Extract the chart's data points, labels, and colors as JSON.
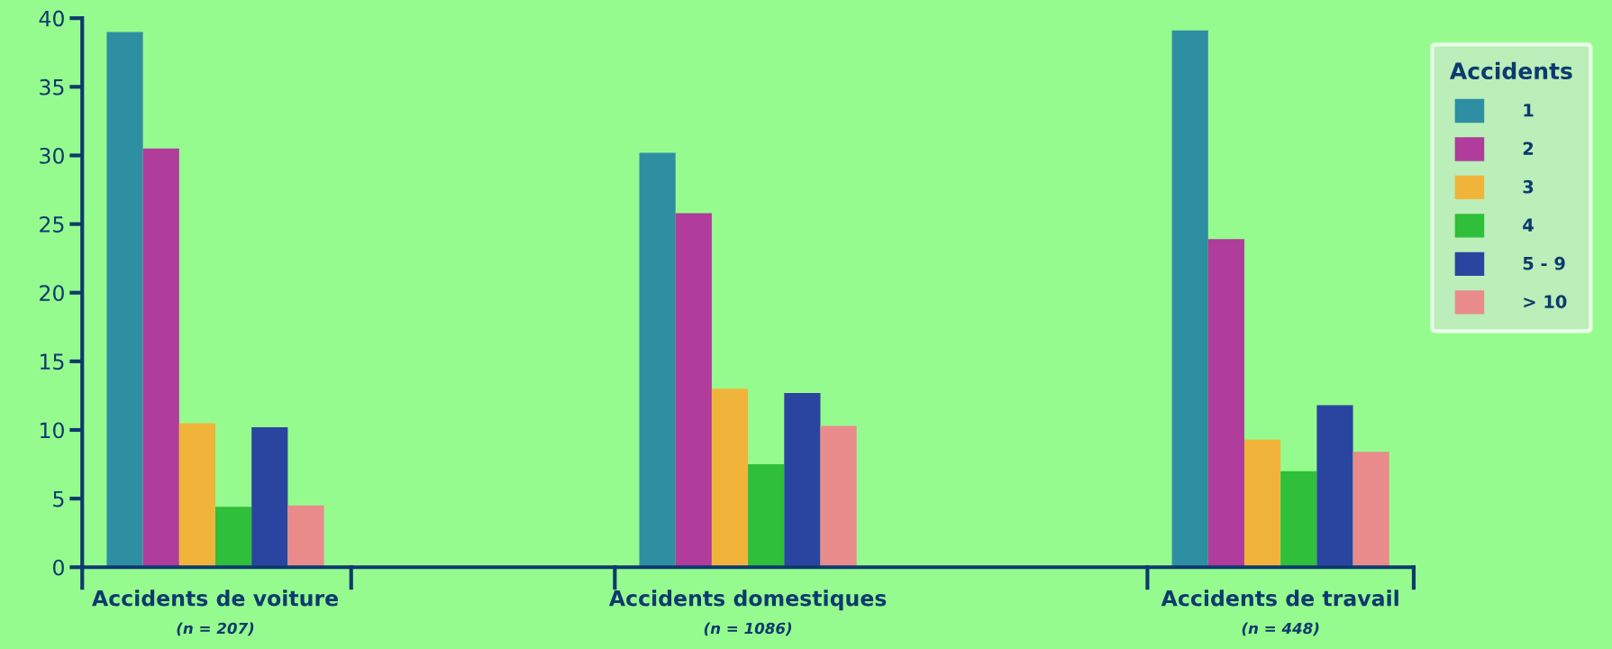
{
  "chart_data": {
    "type": "bar",
    "categories": [
      "Accidents de voiture",
      "Accidents domestiques",
      "Accidents de travail"
    ],
    "annotations": [
      "(n = 207)",
      "(n = 1086)",
      "(n = 448)"
    ],
    "legend_title": "Accidents",
    "legend": "top right",
    "series": [
      {
        "name": "1",
        "color": "#2e8fa3",
        "values": [
          39.0,
          30.2,
          39.1
        ]
      },
      {
        "name": "2",
        "color": "#b03c9c",
        "values": [
          30.5,
          25.8,
          23.9
        ]
      },
      {
        "name": "3",
        "color": "#f0b43a",
        "values": [
          10.5,
          13.0,
          9.3
        ]
      },
      {
        "name": "4",
        "color": "#2fbf3a",
        "values": [
          4.4,
          7.5,
          7.0
        ]
      },
      {
        "name": "5 - 9",
        "color": "#2a45a0",
        "values": [
          10.2,
          12.7,
          11.8
        ]
      },
      {
        "name": "> 10",
        "color": "#e98b8b",
        "values": [
          4.5,
          10.3,
          8.4
        ]
      }
    ],
    "ylim": [
      0,
      40
    ],
    "yticks": [
      0,
      5,
      10,
      15,
      20,
      25,
      30,
      35,
      40
    ],
    "grid": false
  }
}
